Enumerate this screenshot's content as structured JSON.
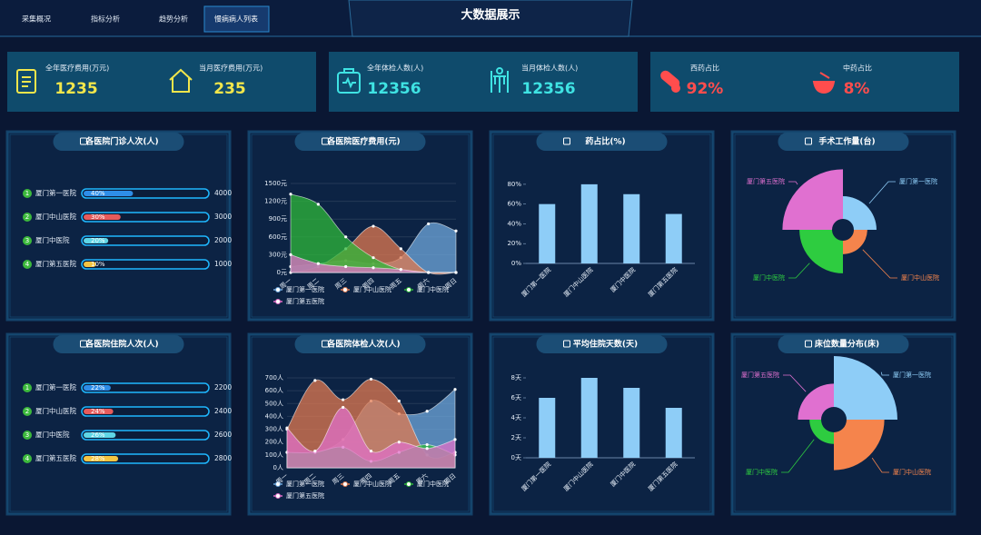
{
  "nav": {
    "tabs": [
      "采集概况",
      "指标分析",
      "趋势分析",
      "慢病病人列表"
    ],
    "active_tab": 3
  },
  "header": {
    "title": "大数据展示"
  },
  "stats": [
    {
      "color": "#f2e64b",
      "items": [
        {
          "label": "全年医疗费用(万元)",
          "value": 1235
        },
        {
          "label": "当月医疗费用(万元)",
          "value": 235
        }
      ]
    },
    {
      "color": "#3fe3e3",
      "items": [
        {
          "label": "全年体检人数(人)",
          "value": 12356
        },
        {
          "label": "当月体检人数(人)",
          "value": 12356
        }
      ]
    },
    {
      "color": "#ff4d4d",
      "items": [
        {
          "label": "西药占比",
          "value": "92%"
        },
        {
          "label": "中药占比",
          "value": "8%"
        }
      ]
    }
  ],
  "panels": [
    {
      "type": "progress",
      "title": "各医院门诊人次(人)",
      "rows": [
        {
          "rank": 1,
          "name": "厦门第一医院",
          "percent": {
            "value": 40,
            "label": "40%"
          },
          "value": 4000,
          "color": "#2e8de8"
        },
        {
          "rank": 2,
          "name": "厦门中山医院",
          "percent": {
            "value": 30,
            "label": "30%"
          },
          "value": 3000,
          "color": "#e65b5b"
        },
        {
          "rank": 3,
          "name": "厦门中医院",
          "percent": {
            "value": 20,
            "label": "20%"
          },
          "value": 2000,
          "color": "#5fd6e6"
        },
        {
          "rank": 4,
          "name": "厦门第五医院",
          "percent": {
            "value": 10,
            "label": "10%"
          },
          "value": 1000,
          "color": "#f5c542"
        }
      ]
    },
    {
      "type": "area",
      "title": "各医院医疗费用(元)",
      "categories": [
        "周一",
        "周二",
        "周三",
        "周四",
        "周五",
        "周六",
        "周日"
      ],
      "ylim": [
        0,
        1500
      ],
      "yticks": [
        {
          "value": 0,
          "label": "0元"
        },
        {
          "value": 300,
          "label": "300元"
        },
        {
          "value": 600,
          "label": "600元"
        },
        {
          "value": 900,
          "label": "900元"
        },
        {
          "value": 1200,
          "label": "1200元"
        },
        {
          "value": 1500,
          "label": "1500元"
        }
      ],
      "series": [
        {
          "name": "厦门第一医院",
          "color": "#6fa8dc",
          "values": [
            100,
            150,
            200,
            150,
            250,
            820,
            700
          ]
        },
        {
          "name": "厦门中山医院",
          "color": "#e07a50",
          "values": [
            0,
            100,
            400,
            780,
            400,
            0,
            0
          ]
        },
        {
          "name": "厦门中医院",
          "color": "#2eb83a",
          "values": [
            1320,
            1150,
            600,
            250,
            50,
            0,
            0
          ]
        },
        {
          "name": "厦门第五医院",
          "color": "#e070c8",
          "values": [
            300,
            150,
            100,
            80,
            50,
            0,
            0
          ]
        }
      ]
    },
    {
      "type": "bar",
      "title": "药占比(%)",
      "categories": [
        "厦门第一医院",
        "厦门中山医院",
        "厦门中医院",
        "厦门第五医院"
      ],
      "values": [
        60,
        80,
        70,
        50
      ],
      "color": "#8ecdf7",
      "ylim": [
        0,
        90
      ],
      "yticks": [
        {
          "value": 0,
          "label": "0%"
        },
        {
          "value": 20,
          "label": "20%"
        },
        {
          "value": 40,
          "label": "40%"
        },
        {
          "value": 60,
          "label": "60%"
        },
        {
          "value": 80,
          "label": "80%"
        }
      ]
    },
    {
      "type": "rose",
      "title": "手术工作量(台)",
      "categories": [
        "厦门第一医院",
        "厦门中山医院",
        "厦门中医院",
        "厦门第五医院"
      ],
      "values": [
        32,
        19,
        46,
        70
      ],
      "colors": [
        "#8ecdf7",
        "#f5844c",
        "#2ecc40",
        "#e070d0"
      ]
    },
    {
      "type": "progress",
      "title": "各医院住院人次(人)",
      "rows": [
        {
          "rank": 1,
          "name": "厦门第一医院",
          "percent": {
            "value": 22,
            "label": "22%"
          },
          "value": 2200,
          "color": "#2e8de8"
        },
        {
          "rank": 2,
          "name": "厦门中山医院",
          "percent": {
            "value": 24,
            "label": "24%"
          },
          "value": 2400,
          "color": "#e65b5b"
        },
        {
          "rank": 3,
          "name": "厦门中医院",
          "percent": {
            "value": 26,
            "label": "26%"
          },
          "value": 2600,
          "color": "#5fd6e6"
        },
        {
          "rank": 4,
          "name": "厦门第五医院",
          "percent": {
            "value": 28,
            "label": "28%"
          },
          "value": 2800,
          "color": "#f5c542"
        }
      ]
    },
    {
      "type": "area",
      "title": "各医院体检人次(人)",
      "categories": [
        "周一",
        "周二",
        "周三",
        "周四",
        "周五",
        "周六",
        "周日"
      ],
      "ylim": [
        0,
        700
      ],
      "yticks": [
        {
          "value": 0,
          "label": "0人"
        },
        {
          "value": 100,
          "label": "100人"
        },
        {
          "value": 200,
          "label": "200人"
        },
        {
          "value": 300,
          "label": "300人"
        },
        {
          "value": 400,
          "label": "400人"
        },
        {
          "value": 500,
          "label": "500人"
        },
        {
          "value": 600,
          "label": "600人"
        },
        {
          "value": 700,
          "label": "700人"
        }
      ],
      "series": [
        {
          "name": "厦门第一医院",
          "color": "#6fa8dc",
          "values": [
            120,
            120,
            220,
            520,
            420,
            440,
            610
          ]
        },
        {
          "name": "厦门中山医院",
          "color": "#e07a50",
          "values": [
            300,
            680,
            530,
            690,
            520,
            100,
            120
          ]
        },
        {
          "name": "厦门中医院",
          "color": "#2eb83a",
          "values": [
            120,
            120,
            160,
            50,
            120,
            180,
            100
          ]
        },
        {
          "name": "厦门第五医院",
          "color": "#e070c8",
          "values": [
            310,
            130,
            470,
            130,
            200,
            150,
            220
          ]
        }
      ]
    },
    {
      "type": "bar",
      "title": "平均住院天数(天)",
      "categories": [
        "厦门第一医院",
        "厦门中山医院",
        "厦门中医院",
        "厦门第五医院"
      ],
      "values": [
        6,
        8,
        7,
        5
      ],
      "color": "#8ecdf7",
      "ylim": [
        0,
        9
      ],
      "yticks": [
        {
          "value": 0,
          "label": "0天"
        },
        {
          "value": 2,
          "label": "2天"
        },
        {
          "value": 4,
          "label": "4天"
        },
        {
          "value": 6,
          "label": "6天"
        },
        {
          "value": 8,
          "label": "8天"
        }
      ]
    },
    {
      "type": "rose",
      "title": "床位数量分布(床)",
      "categories": [
        "厦门第一医院",
        "厦门中山医院",
        "厦门中医院",
        "厦门第五医院"
      ],
      "values": [
        70,
        52,
        16,
        32
      ],
      "colors": [
        "#8ecdf7",
        "#f5844c",
        "#2ecc40",
        "#e070d0"
      ]
    }
  ]
}
